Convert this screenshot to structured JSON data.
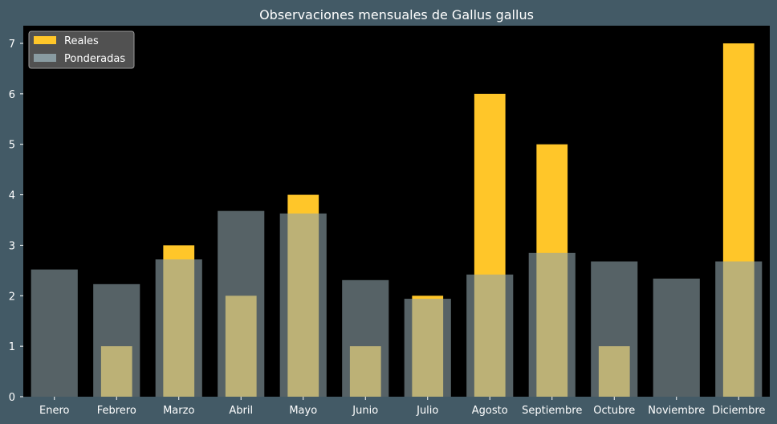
{
  "chart_data": {
    "type": "bar",
    "title": "Observaciones mensuales de Gallus gallus",
    "xlabel": "",
    "ylabel": "",
    "categories": [
      "Enero",
      "Febrero",
      "Marzo",
      "Abril",
      "Mayo",
      "Junio",
      "Julio",
      "Agosto",
      "Septiembre",
      "Octubre",
      "Noviembre",
      "Diciembre"
    ],
    "series": [
      {
        "name": "Reales",
        "color": "#ffc629",
        "values": [
          0,
          1,
          3,
          2,
          4,
          1,
          2,
          6,
          5,
          1,
          0,
          7
        ]
      },
      {
        "name": "Ponderadas",
        "color": "#8fa3aa",
        "values": [
          2.52,
          2.23,
          2.72,
          3.68,
          3.63,
          2.31,
          1.94,
          2.42,
          2.85,
          2.68,
          2.34,
          2.68
        ]
      }
    ],
    "ylim": [
      0,
      7.35
    ],
    "yticks": [
      0,
      1,
      2,
      3,
      4,
      5,
      6,
      7
    ],
    "grid": false,
    "legend": "upper-left",
    "colors": {
      "figure_bg": "#435a66",
      "axes_bg": "#000000"
    }
  }
}
